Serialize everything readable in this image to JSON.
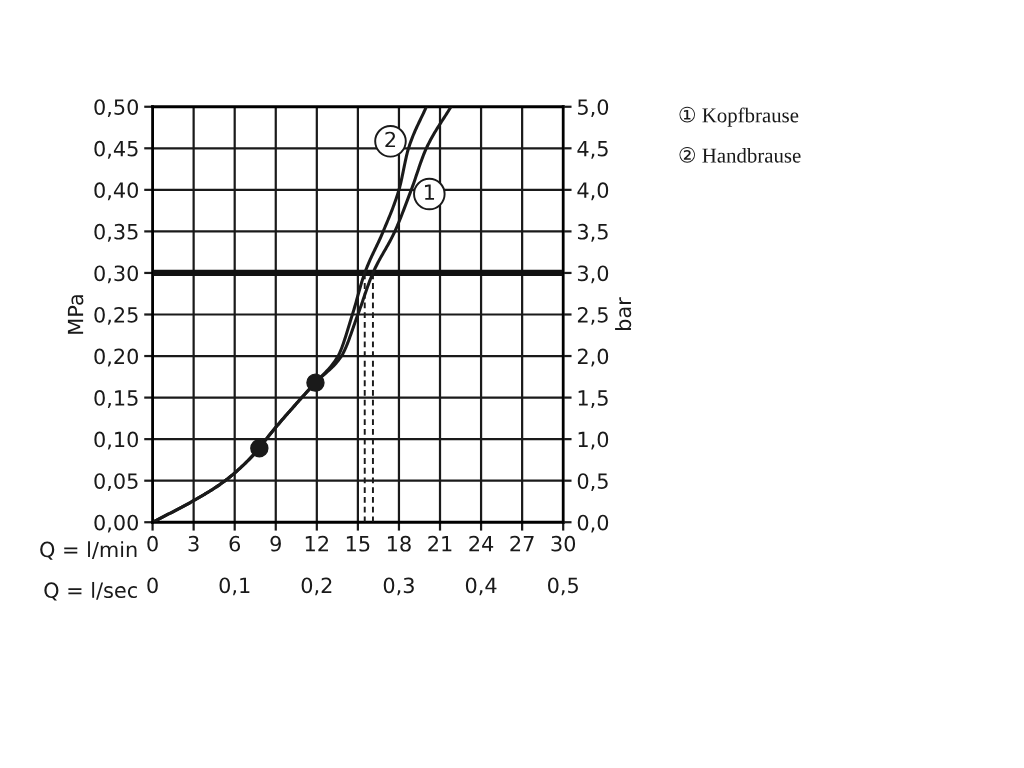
{
  "chart_data": {
    "type": "line",
    "xlabel": "Q = l/min",
    "x2label": "Q = l/sec",
    "ylabel": "MPa",
    "y2label": "bar",
    "series": [
      {
        "color": "#1a1a1a",
        "line_style": "solid",
        "x": [
          0,
          3,
          5.3,
          7.8,
          8.3,
          10.9,
          11.9,
          13.8,
          15.0,
          16.1,
          17.7,
          18.9,
          20.0,
          21.8
        ],
        "values": [
          0,
          0.026,
          0.05,
          0.089,
          0.1,
          0.15,
          0.168,
          0.2,
          0.25,
          0.3,
          0.35,
          0.4,
          0.45,
          0.5
        ]
      },
      {
        "color": "#1a1a1a",
        "line_style": "solid",
        "x": [
          0,
          3,
          5.3,
          7.8,
          8.3,
          10.9,
          11.9,
          13.55,
          14.6,
          15.5,
          16.85,
          18.0,
          18.7,
          20.0
        ],
        "values": [
          0,
          0.026,
          0.05,
          0.089,
          0.1,
          0.15,
          0.168,
          0.2,
          0.25,
          0.3,
          0.35,
          0.4,
          0.45,
          0.5
        ]
      },
      {
        "color": "#1a1a1a",
        "line_style": "dashed",
        "x": [
          15.5,
          15.5
        ],
        "values": [
          0,
          0.3
        ]
      },
      {
        "color": "#1a1a1a",
        "line_style": "dashed",
        "x": [
          16.1,
          16.1
        ],
        "values": [
          0,
          0.3
        ]
      },
      {
        "type": "scatter",
        "color": "#1a1a1a",
        "marker": "circle",
        "x": [
          7.8,
          11.9
        ],
        "values": [
          0.089,
          0.168
        ]
      }
    ],
    "ref_lines": [
      {
        "axis": "y",
        "value": 0.3,
        "color": "#111111"
      }
    ],
    "annotations": [
      {
        "text": "1",
        "x": 18.9,
        "y": 0.4
      },
      {
        "text": "2",
        "x": 18.7,
        "y": 0.45
      },
      "① Kopfbrause",
      "② Handbrause"
    ],
    "xlim": [
      0,
      30
    ],
    "xticks": [
      0,
      3,
      6,
      9,
      12,
      15,
      18,
      21,
      24,
      27,
      30
    ],
    "x2lim": [
      0,
      0.5
    ],
    "x2ticks": [
      0,
      {
        "value": 0.1,
        "label": "0,1"
      },
      {
        "value": 0.2,
        "label": "0,2"
      },
      {
        "value": 0.3,
        "label": "0,3"
      },
      {
        "value": 0.4,
        "label": "0,4"
      },
      {
        "value": 0.5,
        "label": "0,5"
      }
    ],
    "ylim": [
      0,
      0.5
    ],
    "yticks": [
      {
        "value": 0,
        "label": "0,00"
      },
      {
        "value": 0.05,
        "label": "0,05"
      },
      {
        "value": 0.1,
        "label": "0,10"
      },
      {
        "value": 0.15,
        "label": "0,15"
      },
      {
        "value": 0.2,
        "label": "0,20"
      },
      {
        "value": 0.25,
        "label": "0,25"
      },
      {
        "value": 0.3,
        "label": "0,30"
      },
      {
        "value": 0.35,
        "label": "0,35"
      },
      {
        "value": 0.4,
        "label": "0,40"
      },
      {
        "value": 0.45,
        "label": "0,45"
      },
      {
        "value": 0.5,
        "label": "0,50"
      }
    ],
    "y2lim": [
      0,
      5
    ],
    "y2ticks": [
      {
        "value": 0,
        "label": "0,0"
      },
      {
        "value": 0.5,
        "label": "0,5"
      },
      {
        "value": 1,
        "label": "1,0"
      },
      {
        "value": 1.5,
        "label": "1,5"
      },
      {
        "value": 2,
        "label": "2,0"
      },
      {
        "value": 2.5,
        "label": "2,5"
      },
      {
        "value": 3,
        "label": "3,0"
      },
      {
        "value": 3.5,
        "label": "3,5"
      },
      {
        "value": 4,
        "label": "4,0"
      },
      {
        "value": 4.5,
        "label": "4,5"
      },
      {
        "value": 5,
        "label": "5,0"
      }
    ],
    "grid": true,
    "legend": false
  }
}
